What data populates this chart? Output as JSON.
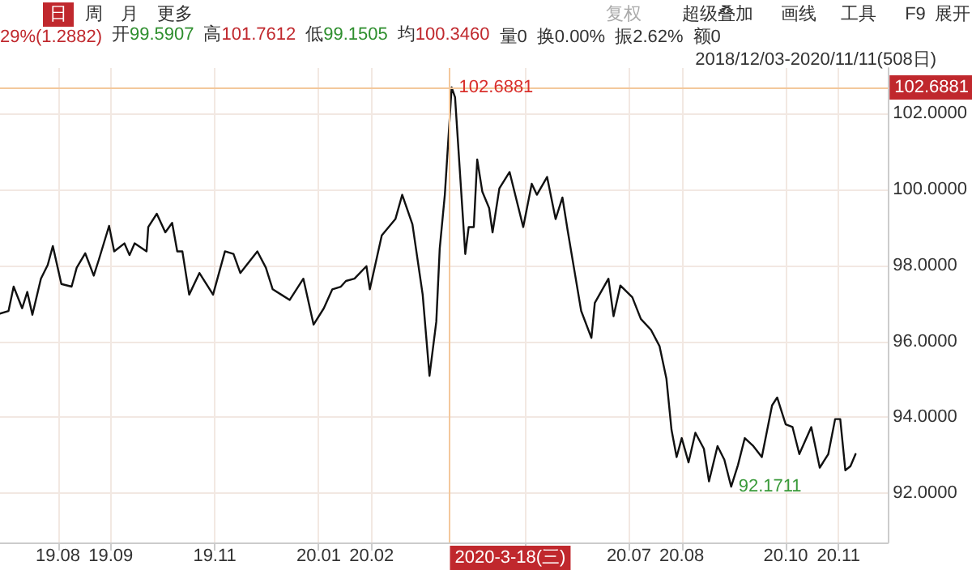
{
  "chart_data": {
    "type": "line",
    "x": [
      "2019-06-28",
      "2019-07-03",
      "2019-07-06",
      "2019-07-11",
      "2019-07-14",
      "2019-07-17",
      "2019-07-22",
      "2019-07-26",
      "2019-07-29",
      "2019-08-03",
      "2019-08-09",
      "2019-08-12",
      "2019-08-17",
      "2019-08-22",
      "2019-08-25",
      "2019-08-31",
      "2019-09-03",
      "2019-09-09",
      "2019-09-12",
      "2019-09-15",
      "2019-09-22",
      "2019-09-23",
      "2019-09-28",
      "2019-10-03",
      "2019-10-07",
      "2019-10-10",
      "2019-10-13",
      "2019-10-17",
      "2019-10-23",
      "2019-10-31",
      "2019-11-07",
      "2019-11-12",
      "2019-11-16",
      "2019-11-26",
      "2019-12-01",
      "2019-12-05",
      "2019-12-10",
      "2019-12-15",
      "2019-12-23",
      "2019-12-29",
      "2020-01-04",
      "2020-01-09",
      "2020-01-14",
      "2020-01-17",
      "2020-01-22",
      "2020-01-29",
      "2020-01-31",
      "2020-02-07",
      "2020-02-15",
      "2020-02-19",
      "2020-02-25",
      "2020-03-02",
      "2020-03-06",
      "2020-03-10",
      "2020-03-12",
      "2020-03-15",
      "2020-03-19",
      "2020-03-21",
      "2020-03-27",
      "2020-03-29",
      "2020-04-01",
      "2020-04-03",
      "2020-04-06",
      "2020-04-10",
      "2020-04-12",
      "2020-04-16",
      "2020-04-22",
      "2020-04-30",
      "2020-05-05",
      "2020-05-08",
      "2020-05-14",
      "2020-05-19",
      "2020-05-23",
      "2020-05-26",
      "2020-05-30",
      "2020-06-03",
      "2020-06-09",
      "2020-06-11",
      "2020-06-19",
      "2020-06-22",
      "2020-06-26",
      "2020-07-03",
      "2020-07-08",
      "2020-07-14",
      "2020-07-19",
      "2020-07-23",
      "2020-07-26",
      "2020-07-29",
      "2020-08-01",
      "2020-08-05",
      "2020-08-09",
      "2020-08-14",
      "2020-08-17",
      "2020-08-22",
      "2020-08-26",
      "2020-08-30",
      "2020-09-03",
      "2020-09-07",
      "2020-09-12",
      "2020-09-17",
      "2020-09-23",
      "2020-09-26",
      "2020-10-01",
      "2020-10-05",
      "2020-10-09",
      "2020-10-16",
      "2020-10-21",
      "2020-10-26",
      "2020-10-30",
      "2020-11-02",
      "2020-11-05",
      "2020-11-08",
      "2020-11-11"
    ],
    "series": [
      {
        "color": "#111111",
        "values": [
          96.73,
          96.8,
          97.44,
          96.87,
          97.3,
          96.7,
          97.65,
          98.01,
          98.51,
          97.51,
          97.44,
          97.94,
          98.32,
          97.73,
          98.15,
          99.04,
          98.37,
          98.58,
          98.27,
          98.58,
          98.37,
          99.01,
          99.36,
          98.87,
          99.12,
          98.37,
          98.37,
          97.23,
          97.8,
          97.23,
          98.37,
          98.3,
          97.8,
          98.37,
          97.94,
          97.37,
          97.23,
          97.09,
          97.65,
          96.44,
          96.87,
          97.37,
          97.44,
          97.59,
          97.65,
          97.98,
          97.37,
          98.79,
          99.22,
          99.86,
          99.08,
          97.23,
          95.09,
          96.52,
          98.44,
          99.86,
          102.6881,
          102.43,
          98.3,
          99.01,
          99.01,
          100.79,
          99.94,
          99.51,
          98.87,
          100.03,
          100.46,
          99.01,
          100.15,
          99.86,
          100.33,
          99.22,
          99.79,
          98.94,
          97.87,
          96.8,
          96.09,
          97.01,
          97.65,
          96.66,
          97.47,
          97.16,
          96.59,
          96.3,
          95.87,
          95.02,
          93.67,
          92.95,
          93.45,
          92.81,
          93.59,
          93.17,
          92.31,
          93.24,
          92.88,
          92.1711,
          92.74,
          93.45,
          93.24,
          92.95,
          94.31,
          94.52,
          93.81,
          93.74,
          93.03,
          93.74,
          92.67,
          93.03,
          93.95,
          93.95,
          92.6,
          92.71,
          93.03
        ]
      }
    ],
    "xlim": [
      "2019-06-28",
      "2020-11-30"
    ],
    "xticks": [
      {
        "value": "2019-08-01",
        "label": "19.08"
      },
      {
        "value": "2019-09-01",
        "label": "19.09"
      },
      {
        "value": "2019-11-01",
        "label": "19.11"
      },
      {
        "value": "2020-01-01",
        "label": "20.01"
      },
      {
        "value": "2020-02-01",
        "label": "20.02"
      },
      {
        "value": "2020-05-01",
        "label": null
      },
      {
        "value": "2020-07-01",
        "label": "20.07"
      },
      {
        "value": "2020-08-01",
        "label": "20.08"
      },
      {
        "value": "2020-10-01",
        "label": "20.10"
      },
      {
        "value": "2020-11-01",
        "label": "20.11"
      }
    ],
    "ylim": [
      90.7,
      103.2
    ],
    "yticks": [
      {
        "value": 92,
        "label": "92.0000"
      },
      {
        "value": 94,
        "label": "94.0000"
      },
      {
        "value": 96,
        "label": "96.0000"
      },
      {
        "value": 98,
        "label": "98.0000"
      },
      {
        "value": 100,
        "label": "100.0000"
      },
      {
        "value": 102,
        "label": "102.0000"
      }
    ],
    "grid": true,
    "marker": "none",
    "line_style": "solid",
    "ref_lines": [
      {
        "axis": "x",
        "value": "2020-03-18",
        "label": "2020-3-18(三)",
        "color": "#f3c89c"
      },
      {
        "axis": "y",
        "value": 102.6881,
        "label": "102.6881",
        "color": "#f3c89c"
      }
    ],
    "annotations": [
      "日",
      "周",
      "月",
      "更多",
      "复权",
      "超级叠加",
      "画线",
      "工具",
      "F9",
      "展开",
      "29%(1.2882)",
      "开99.5907",
      "高101.7612",
      "低99.1505",
      "均100.3460",
      "量0",
      "换0.00%",
      "振2.62%",
      "额0",
      "2018/12/03-2020/11/11(508日)",
      {
        "text": "102.6881",
        "x": "2020-03-19",
        "y": 102.6881
      },
      {
        "text": "92.1711",
        "x": "2020-08-30",
        "y": 92.1711
      }
    ]
  }
}
